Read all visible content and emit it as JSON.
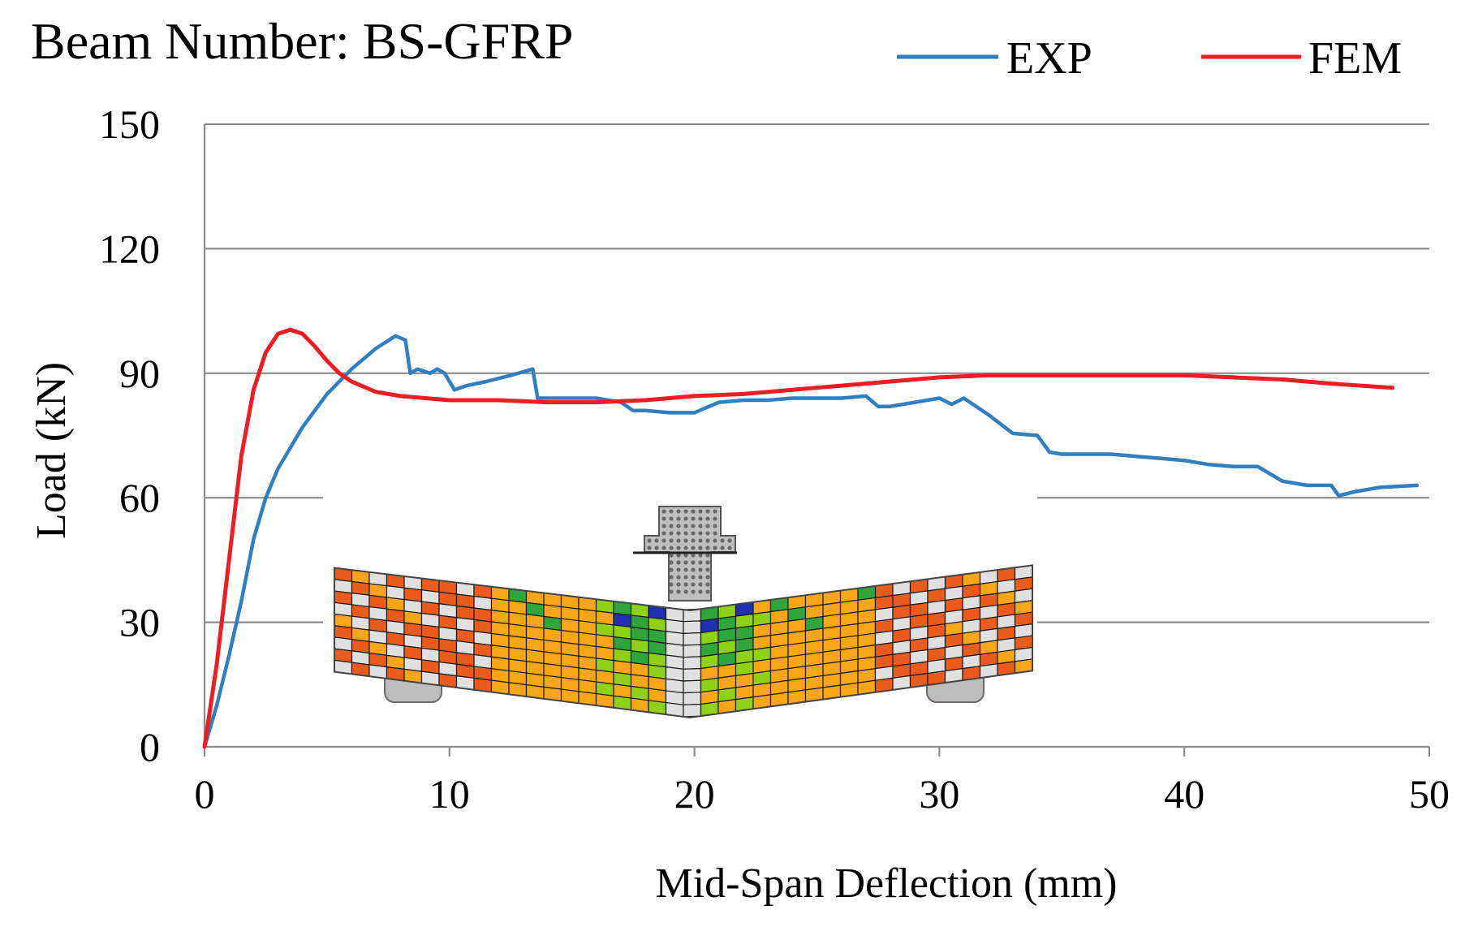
{
  "chart_data": {
    "type": "line",
    "title": "Beam Number: BS-GFRP",
    "xlabel": "Mid-Span Deflection (mm)",
    "ylabel": "Load (kN)",
    "xlim": [
      0,
      50
    ],
    "ylim": [
      0,
      150
    ],
    "xticks": [
      0,
      10,
      20,
      30,
      40,
      50
    ],
    "yticks": [
      0,
      30,
      60,
      90,
      120,
      150
    ],
    "grid": "horizontal",
    "legend_position": "top-right",
    "series": [
      {
        "name": "EXP",
        "color": "#2f7fc1",
        "x": [
          0,
          0.5,
          1,
          1.5,
          2,
          2.5,
          3,
          4,
          5,
          6,
          7,
          7.8,
          8.2,
          8.4,
          8.7,
          9.2,
          9.5,
          9.8,
          10.2,
          10.7,
          11.5,
          12.5,
          13.4,
          13.6,
          14,
          15,
          16,
          17,
          17.5,
          18,
          19,
          20,
          21,
          22,
          23,
          24,
          25,
          26,
          27,
          27.5,
          28,
          29,
          30,
          30.5,
          31,
          31.5,
          32,
          33,
          34,
          34.5,
          35,
          36,
          37,
          38,
          39,
          40,
          41,
          42,
          43,
          44,
          45,
          46,
          46.3,
          47,
          48,
          49.5
        ],
        "y": [
          0,
          10,
          22,
          35,
          50,
          60,
          67,
          77,
          85,
          91,
          96,
          99,
          98,
          90,
          91,
          90,
          91,
          90,
          86,
          87,
          88,
          89.5,
          91,
          84,
          84,
          84,
          84,
          83,
          81,
          81,
          80.5,
          80.5,
          83,
          83.5,
          83.5,
          84,
          84,
          84,
          84.5,
          82,
          82,
          83,
          84,
          82.5,
          84,
          82,
          80,
          75.5,
          75,
          71,
          70.5,
          70.5,
          70.5,
          70,
          69.5,
          69,
          68,
          67.5,
          67.5,
          64,
          63,
          63,
          60.5,
          61.5,
          62.5,
          63
        ]
      },
      {
        "name": "FEM",
        "color": "#ee1c25",
        "x": [
          0,
          0.5,
          1,
          1.5,
          2,
          2.5,
          3,
          3.5,
          4,
          4.5,
          5,
          5.5,
          6,
          7,
          8,
          9,
          10,
          12,
          14,
          16,
          18,
          20,
          22,
          24,
          26,
          28,
          30,
          32,
          34,
          36,
          38,
          40,
          42,
          44,
          46,
          48.5
        ],
        "y": [
          0,
          20,
          45,
          70,
          86,
          95,
          99.5,
          100.5,
          99.5,
          96.5,
          93,
          90,
          88,
          85.5,
          84.5,
          84,
          83.5,
          83.5,
          83,
          83,
          83.5,
          84.5,
          85,
          86,
          87,
          88,
          89,
          89.5,
          89.5,
          89.5,
          89.5,
          89.5,
          89,
          88.5,
          87.5,
          86.5
        ]
      }
    ]
  },
  "inset": {
    "grid_color": "#1a1a1a",
    "palette": [
      "#e0e0e0",
      "#ea5b1c",
      "#f6a616",
      "#2ea63b",
      "#8ed116",
      "#1f2fb0",
      "#ffffff"
    ]
  }
}
